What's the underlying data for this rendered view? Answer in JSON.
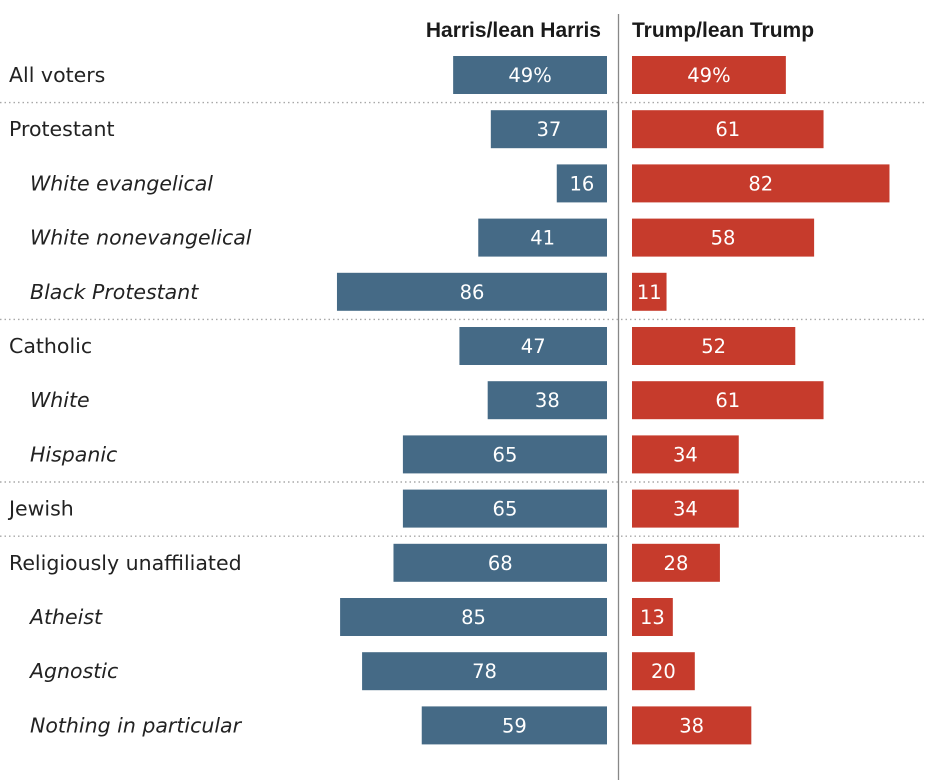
{
  "colors": {
    "harris": "#456a86",
    "trump": "#c63b2c",
    "axis": "#888888",
    "separator": "#a8a8a8"
  },
  "chart_data": {
    "type": "bar",
    "orientation": "horizontal-diverging",
    "headers": {
      "left": "Harris/lean Harris",
      "right": "Trump/lean Trump"
    },
    "xlim": [
      0,
      100
    ],
    "grid": false,
    "legend": "none",
    "rows": [
      {
        "label": "All voters",
        "indent": false,
        "harris": 49,
        "trump": 49,
        "harris_label": "49%",
        "trump_label": "49%",
        "separator_after": true
      },
      {
        "label": "Protestant",
        "indent": false,
        "harris": 37,
        "trump": 61,
        "harris_label": "37",
        "trump_label": "61",
        "separator_after": false
      },
      {
        "label": "White evangelical",
        "indent": true,
        "harris": 16,
        "trump": 82,
        "harris_label": "16",
        "trump_label": "82",
        "separator_after": false
      },
      {
        "label": "White nonevangelical",
        "indent": true,
        "harris": 41,
        "trump": 58,
        "harris_label": "41",
        "trump_label": "58",
        "separator_after": false
      },
      {
        "label": "Black Protestant",
        "indent": true,
        "harris": 86,
        "trump": 11,
        "harris_label": "86",
        "trump_label": "11",
        "separator_after": true
      },
      {
        "label": "Catholic",
        "indent": false,
        "harris": 47,
        "trump": 52,
        "harris_label": "47",
        "trump_label": "52",
        "separator_after": false
      },
      {
        "label": "White",
        "indent": true,
        "harris": 38,
        "trump": 61,
        "harris_label": "38",
        "trump_label": "61",
        "separator_after": false
      },
      {
        "label": "Hispanic",
        "indent": true,
        "harris": 65,
        "trump": 34,
        "harris_label": "65",
        "trump_label": "34",
        "separator_after": true
      },
      {
        "label": "Jewish",
        "indent": false,
        "harris": 65,
        "trump": 34,
        "harris_label": "65",
        "trump_label": "34",
        "separator_after": true
      },
      {
        "label": "Religiously unaffiliated",
        "indent": false,
        "harris": 68,
        "trump": 28,
        "harris_label": "68",
        "trump_label": "28",
        "separator_after": false
      },
      {
        "label": "Atheist",
        "indent": true,
        "harris": 85,
        "trump": 13,
        "harris_label": "85",
        "trump_label": "13",
        "separator_after": false
      },
      {
        "label": "Agnostic",
        "indent": true,
        "harris": 78,
        "trump": 20,
        "harris_label": "78",
        "trump_label": "20",
        "separator_after": false
      },
      {
        "label": "Nothing in particular",
        "indent": true,
        "harris": 59,
        "trump": 38,
        "harris_label": "59",
        "trump_label": "38",
        "separator_after": false
      }
    ]
  }
}
